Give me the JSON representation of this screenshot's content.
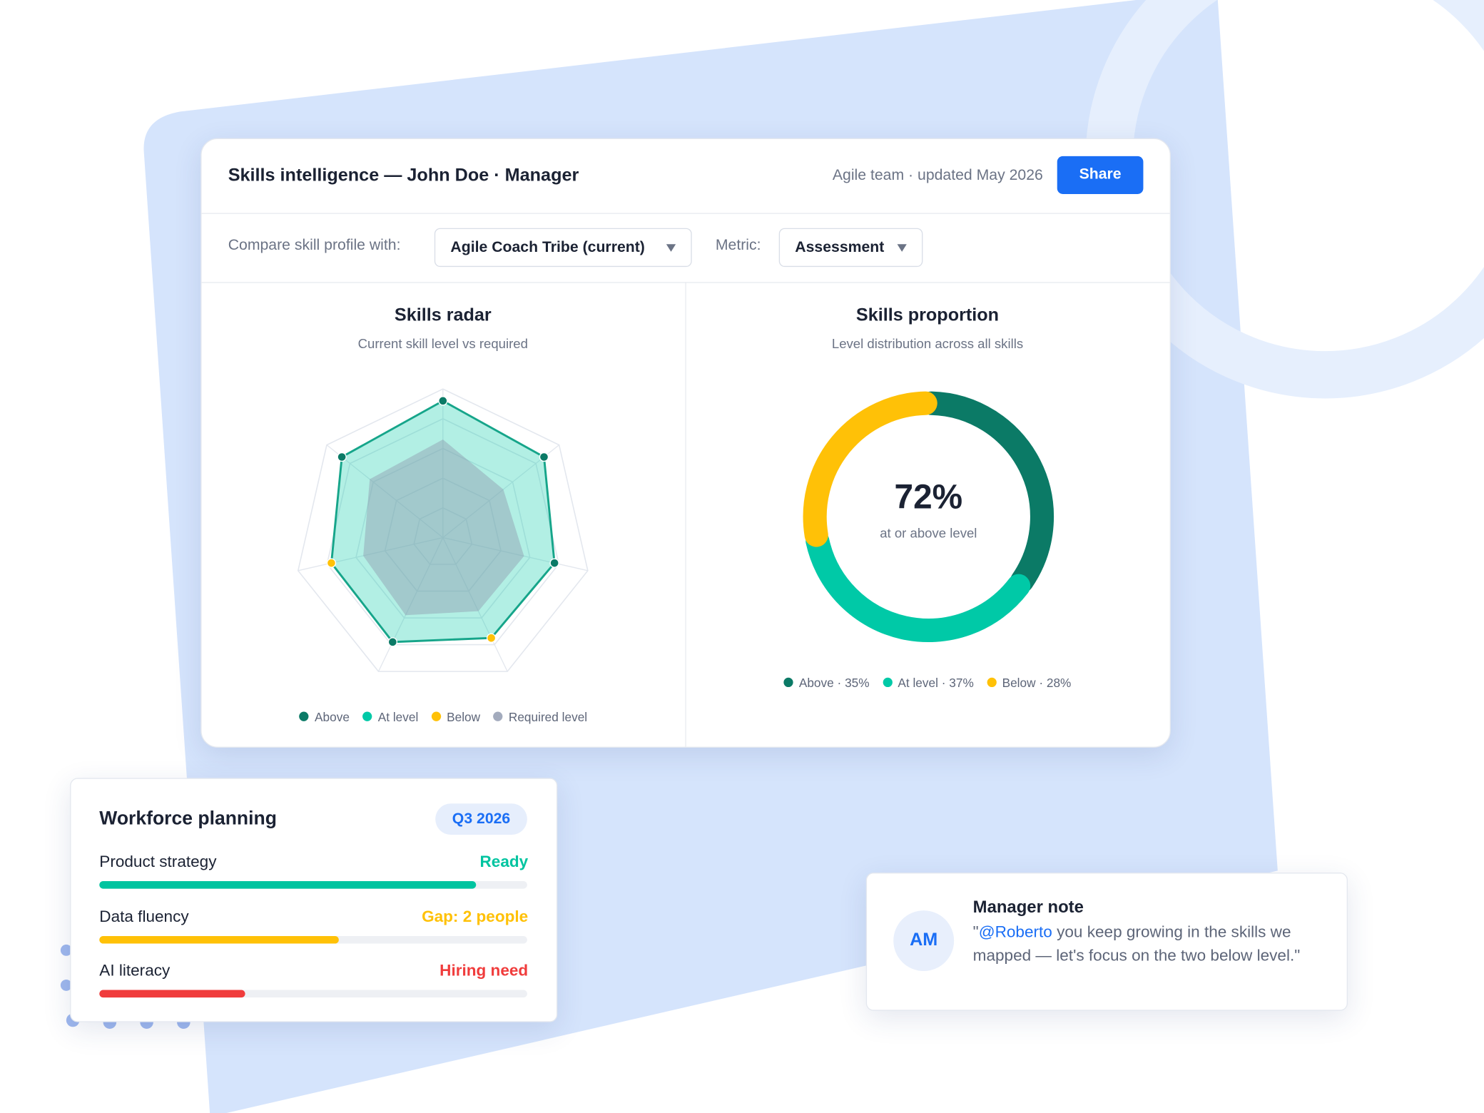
{
  "header": {
    "title": "Skills intelligence — John Doe · Manager",
    "meta": "Agile team · updated May 2026",
    "share": "Share"
  },
  "filters": {
    "compare_label": "Compare skill profile with:",
    "compare_value": "Agile Coach Tribe (current)",
    "metric_label": "Metric:",
    "metric_value": "Assessment"
  },
  "chart_data": [
    {
      "type": "radar",
      "title": "Skills radar",
      "subtitle": "Current skill level vs required",
      "rlim": [
        0,
        100
      ],
      "rticks": [
        20,
        40,
        60,
        80,
        100
      ],
      "series": [
        {
          "color": "#8d9bb0",
          "values": [
            66,
            52,
            56,
            55,
            58,
            55,
            63
          ]
        },
        {
          "color": "#16a58a",
          "values": [
            92,
            87,
            77,
            75,
            78,
            77,
            87
          ],
          "point_colors": [
            "#0b7a66",
            "#0b7a66",
            "#0b7a66",
            "#ffc107",
            "#0b7a66",
            "#ffc107",
            "#0b7a66"
          ]
        }
      ],
      "legend": [
        {
          "label": "Above",
          "color": "#0b7a66"
        },
        {
          "label": "At level",
          "color": "#00c9a7"
        },
        {
          "label": "Below",
          "color": "#ffc107"
        },
        {
          "label": "Required level",
          "color": "#a3abbd"
        }
      ]
    },
    {
      "type": "donut",
      "title": "Skills proportion",
      "subtitle": "Level distribution across all skills",
      "center_label": "72%",
      "center_sublabel": "at or above level",
      "categories": [
        "Above · 35%",
        "At level · 37%",
        "Below · 28%"
      ],
      "values": [
        35,
        37,
        28
      ],
      "colors": [
        "#0b7a66",
        "#00c9a7",
        "#ffc107"
      ]
    }
  ],
  "workforce": {
    "title": "Workforce planning",
    "period": "Q3 2026",
    "rows": [
      {
        "label": "Product strategy",
        "status": "Ready",
        "color": "#00c4a0",
        "progress": 88
      },
      {
        "label": "Data fluency",
        "status": "Gap: 2 people",
        "color": "#ffc107",
        "progress": 56
      },
      {
        "label": "AI literacy",
        "status": "Hiring need",
        "color": "#f03c3c",
        "progress": 34
      }
    ]
  },
  "note": {
    "initials": "AM",
    "title": "Manager note",
    "body": [
      "\"",
      "@Roberto",
      " you keep growing in the skills we mapped — let's focus on the two below level.\""
    ]
  }
}
